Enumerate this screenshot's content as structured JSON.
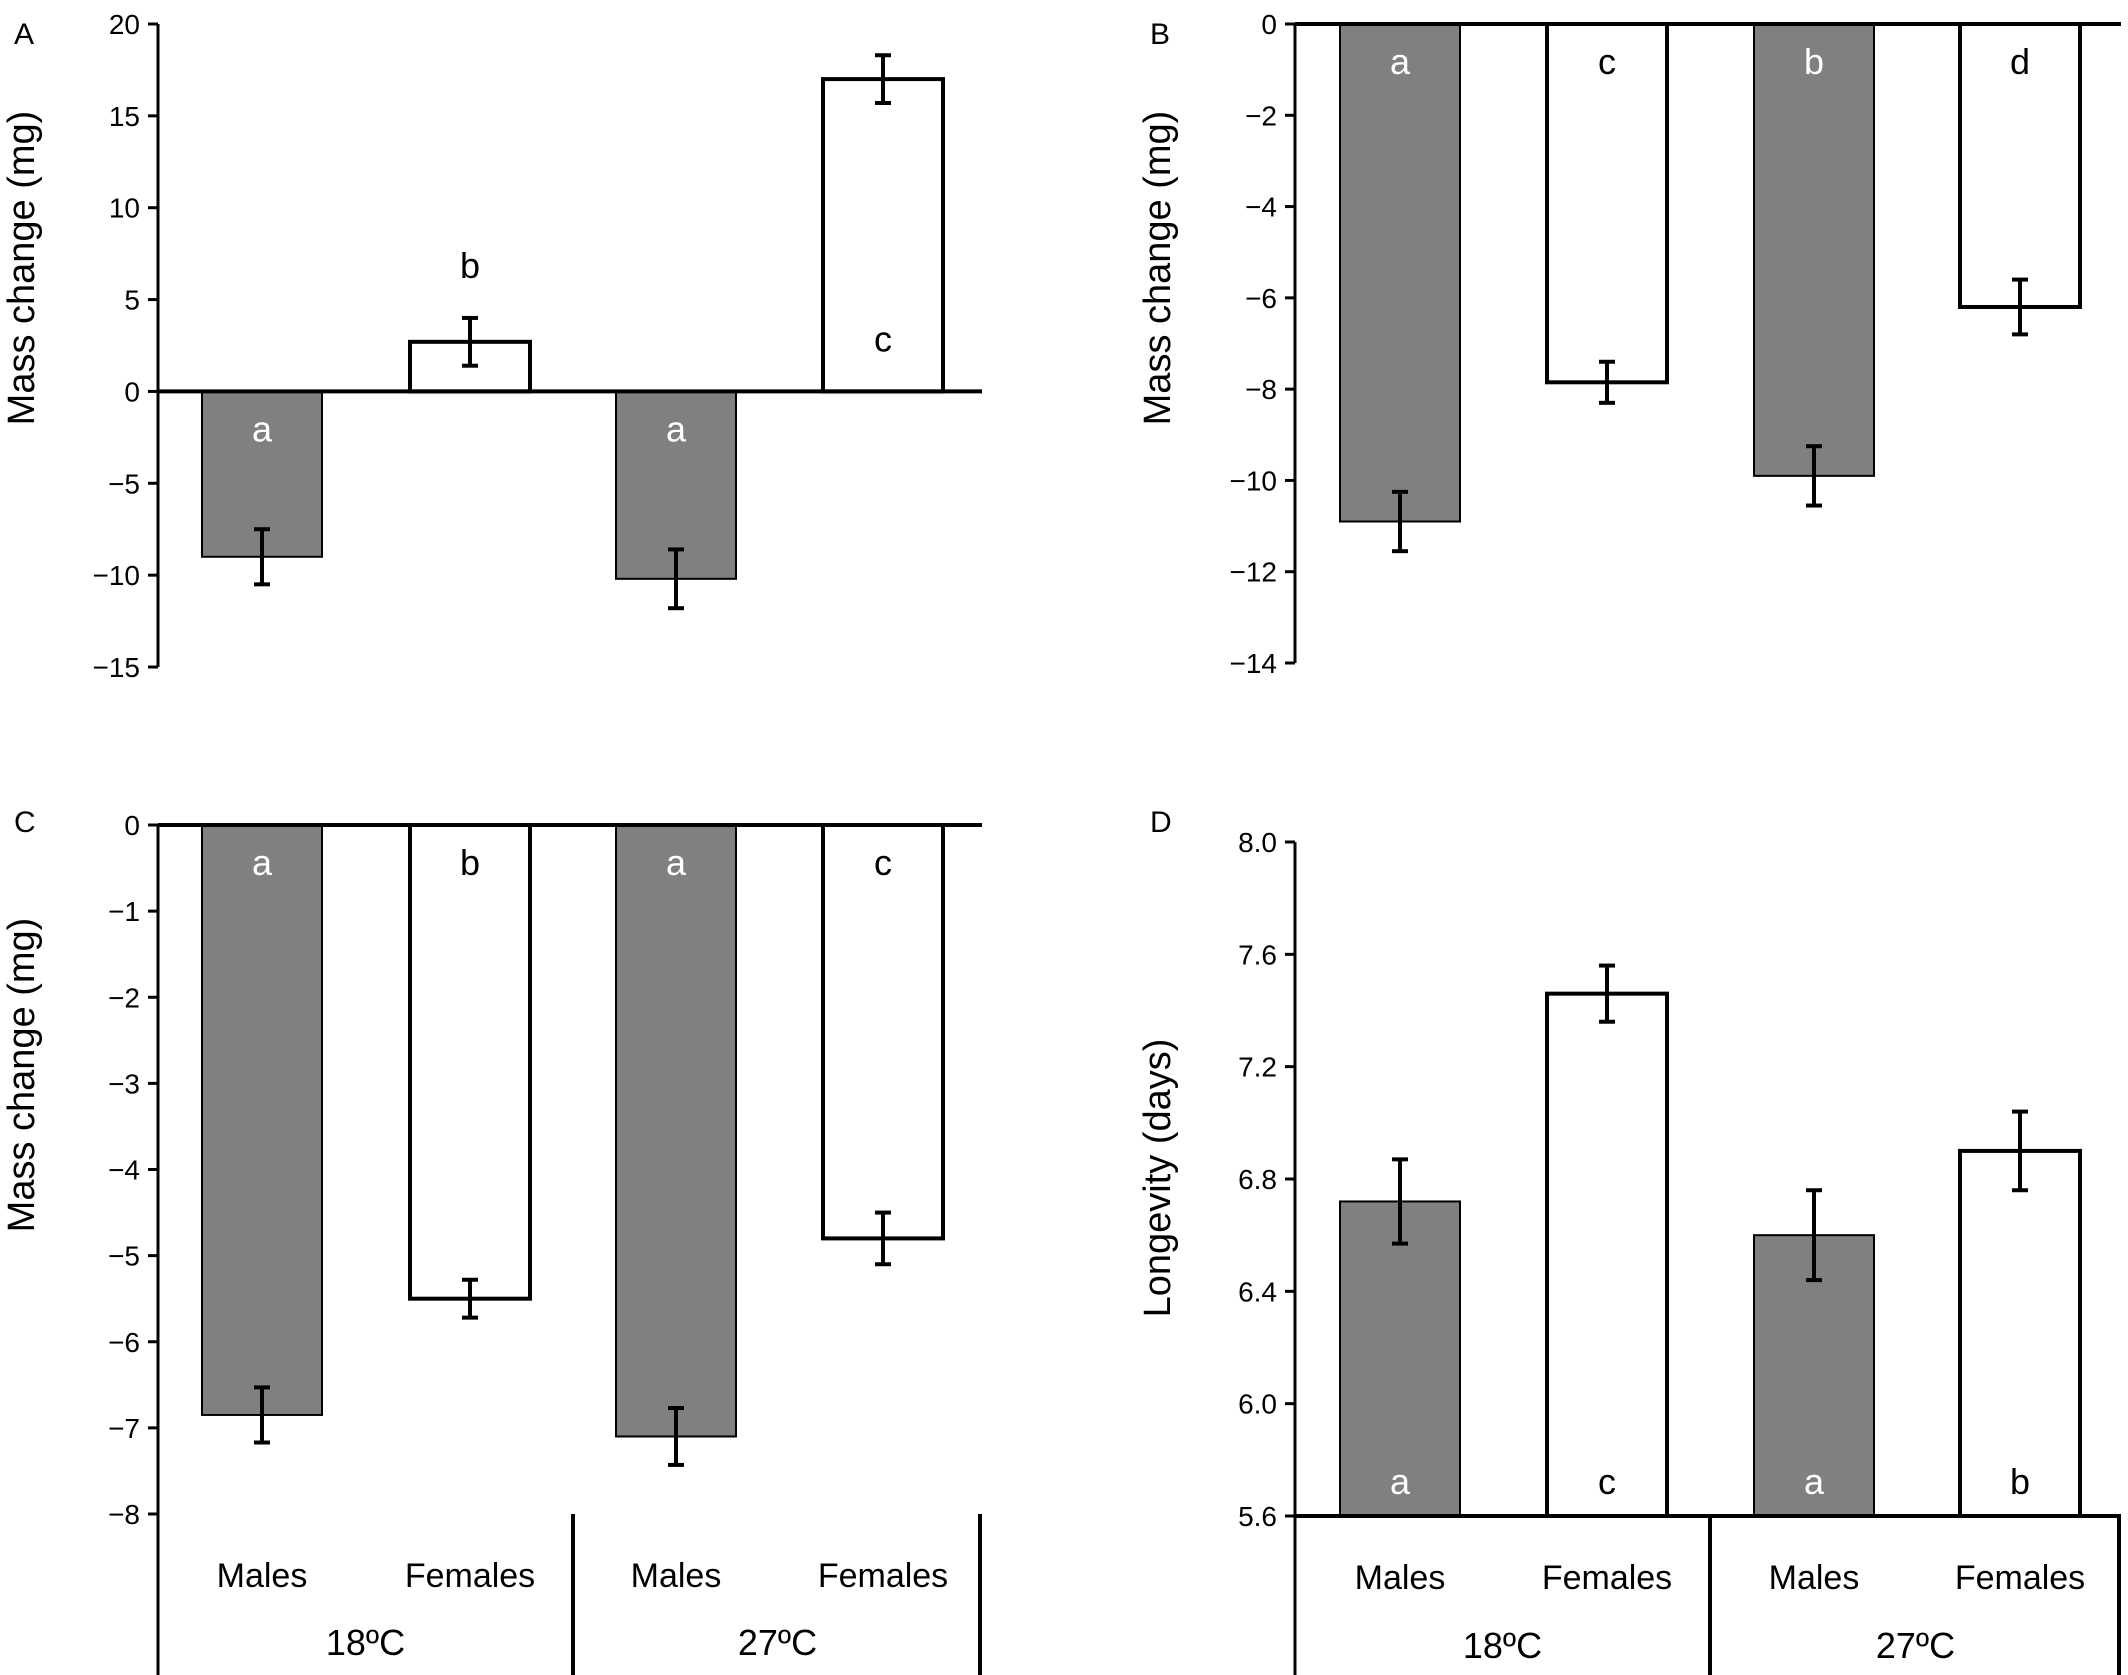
{
  "colors": {
    "male_fill": "#808080",
    "female_fill": "#ffffff",
    "stroke": "#000000",
    "letter_on_dark": "#ffffff",
    "letter_on_light": "#000000"
  },
  "chart_data": [
    {
      "panel": "A",
      "type": "bar",
      "ylabel": "Mass change (mg)",
      "ylim": [
        -15,
        20
      ],
      "yticks": [
        20,
        15,
        10,
        5,
        0,
        -5,
        -10,
        -15
      ],
      "ytick_labels": [
        "20",
        "15",
        "10",
        "5",
        "0",
        "−5",
        "−10",
        "−15"
      ],
      "categories": [
        "Males",
        "Females",
        "Males",
        "Females"
      ],
      "groups": [
        "18ºC",
        "27ºC"
      ],
      "values": [
        -9.0,
        2.7,
        -10.2,
        17.0
      ],
      "errors": [
        1.5,
        1.3,
        1.6,
        1.3
      ],
      "letters": [
        "a",
        "b",
        "a",
        "c"
      ],
      "show_category_axis": false
    },
    {
      "panel": "B",
      "type": "bar",
      "ylabel": "Mass change (mg)",
      "ylim": [
        -14,
        0
      ],
      "yticks": [
        0,
        -2,
        -4,
        -6,
        -8,
        -10,
        -12,
        -14
      ],
      "ytick_labels": [
        "0",
        "−2",
        "−4",
        "−6",
        "−8",
        "−10",
        "−12",
        "−14"
      ],
      "categories": [
        "Males",
        "Females",
        "Males",
        "Females"
      ],
      "groups": [
        "18ºC",
        "27ºC"
      ],
      "values": [
        -10.9,
        -7.85,
        -9.9,
        -6.2
      ],
      "errors": [
        0.65,
        0.45,
        0.65,
        0.6
      ],
      "letters": [
        "a",
        "c",
        "b",
        "d"
      ],
      "show_category_axis": false
    },
    {
      "panel": "C",
      "type": "bar",
      "ylabel": "Mass change (mg)",
      "ylim": [
        -8,
        0
      ],
      "yticks": [
        0,
        -1,
        -2,
        -3,
        -4,
        -5,
        -6,
        -7,
        -8
      ],
      "ytick_labels": [
        "0",
        "−1",
        "−2",
        "−3",
        "−4",
        "−5",
        "−6",
        "−7",
        "−8"
      ],
      "categories": [
        "Males",
        "Females",
        "Males",
        "Females"
      ],
      "groups": [
        "18ºC",
        "27ºC"
      ],
      "values": [
        -6.85,
        -5.5,
        -7.1,
        -4.8
      ],
      "errors": [
        0.32,
        0.22,
        0.33,
        0.3
      ],
      "letters": [
        "a",
        "b",
        "a",
        "c"
      ],
      "show_category_axis": true
    },
    {
      "panel": "D",
      "type": "bar",
      "ylabel": "Longevity (days)",
      "ylim": [
        5.6,
        8.0
      ],
      "yticks": [
        8.0,
        7.6,
        7.2,
        6.8,
        6.4,
        6.0,
        5.6
      ],
      "ytick_labels": [
        "8.0",
        "7.6",
        "7.2",
        "6.8",
        "6.4",
        "6.0",
        "5.6"
      ],
      "categories": [
        "Males",
        "Females",
        "Males",
        "Females"
      ],
      "groups": [
        "18ºC",
        "27ºC"
      ],
      "values": [
        6.72,
        7.46,
        6.6,
        6.9
      ],
      "errors": [
        0.15,
        0.1,
        0.16,
        0.14
      ],
      "letters": [
        "a",
        "c",
        "a",
        "b"
      ],
      "show_category_axis": true
    }
  ]
}
